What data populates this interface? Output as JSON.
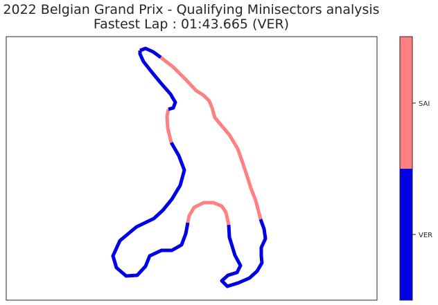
{
  "chart_data": {
    "type": "line",
    "title": "2022 Belgian Grand Prix - Qualifying Minisectors analysis",
    "subtitle": "Fastest Lap : 01:43.665 (VER)",
    "xlabel": "",
    "ylabel": "",
    "grid": false,
    "legend": "colorbar-right",
    "drivers": [
      {
        "name": "VER",
        "color": "#0000e6"
      },
      {
        "name": "SAI",
        "color": "#ff8080"
      }
    ],
    "track": [
      [
        202,
        73
      ],
      [
        210,
        70
      ],
      [
        221,
        75
      ],
      [
        232,
        83
      ],
      [
        250,
        97
      ],
      [
        268,
        115
      ],
      [
        283,
        131
      ],
      [
        294,
        138
      ],
      [
        302,
        146
      ],
      [
        306,
        156
      ],
      [
        310,
        170
      ],
      [
        320,
        182
      ],
      [
        331,
        195
      ],
      [
        343,
        215
      ],
      [
        350,
        235
      ],
      [
        356,
        253
      ],
      [
        362,
        272
      ],
      [
        369,
        290
      ],
      [
        376,
        317
      ],
      [
        381,
        331
      ],
      [
        383,
        345
      ],
      [
        377,
        358
      ],
      [
        377,
        370
      ],
      [
        378,
        380
      ],
      [
        371,
        392
      ],
      [
        360,
        402
      ],
      [
        344,
        409
      ],
      [
        328,
        414
      ],
      [
        320,
        406
      ],
      [
        329,
        398
      ],
      [
        342,
        394
      ],
      [
        347,
        384
      ],
      [
        339,
        369
      ],
      [
        331,
        343
      ],
      [
        330,
        325
      ],
      [
        326,
        307
      ],
      [
        320,
        298
      ],
      [
        308,
        293
      ],
      [
        294,
        293
      ],
      [
        280,
        300
      ],
      [
        273,
        312
      ],
      [
        271,
        322
      ],
      [
        268,
        338
      ],
      [
        262,
        354
      ],
      [
        248,
        362
      ],
      [
        233,
        362
      ],
      [
        216,
        370
      ],
      [
        210,
        385
      ],
      [
        198,
        398
      ],
      [
        182,
        399
      ],
      [
        168,
        387
      ],
      [
        163,
        370
      ],
      [
        173,
        348
      ],
      [
        197,
        328
      ],
      [
        222,
        316
      ],
      [
        235,
        304
      ],
      [
        248,
        288
      ],
      [
        260,
        268
      ],
      [
        266,
        246
      ],
      [
        258,
        225
      ],
      [
        247,
        206
      ],
      [
        242,
        185
      ],
      [
        241,
        168
      ],
      [
        243,
        158
      ],
      [
        250,
        156
      ],
      [
        253,
        148
      ],
      [
        246,
        136
      ],
      [
        232,
        120
      ],
      [
        218,
        103
      ],
      [
        207,
        89
      ],
      [
        202,
        78
      ],
      [
        202,
        73
      ]
    ],
    "segments": [
      {
        "driver": "VER",
        "from": 0,
        "to": 3
      },
      {
        "driver": "SAI",
        "from": 3,
        "to": 18
      },
      {
        "driver": "VER",
        "from": 18,
        "to": 34
      },
      {
        "driver": "SAI",
        "from": 34,
        "to": 41
      },
      {
        "driver": "VER",
        "from": 41,
        "to": 60
      },
      {
        "driver": "SAI",
        "from": 60,
        "to": 63
      },
      {
        "driver": "VER",
        "from": 63,
        "to": 71
      }
    ]
  }
}
